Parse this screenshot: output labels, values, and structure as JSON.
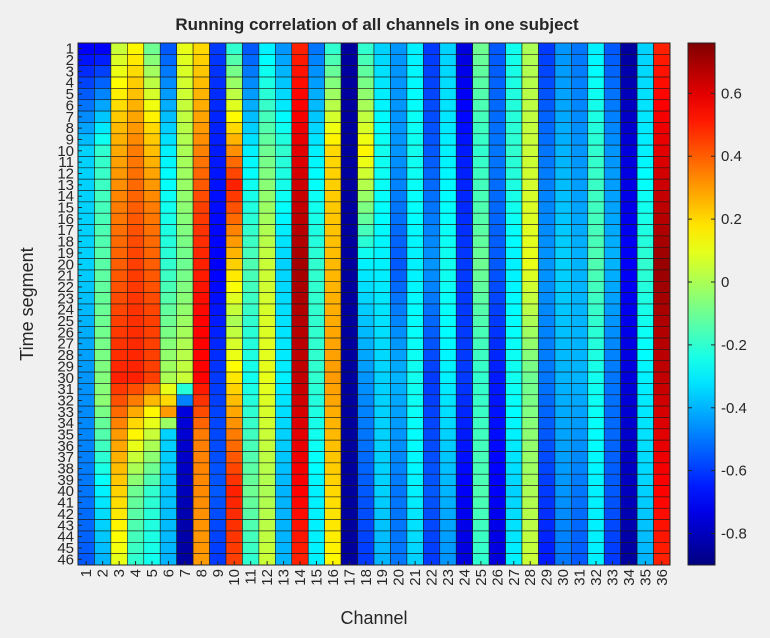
{
  "chart_data": {
    "type": "heatmap",
    "title": "Running correlation of all channels in one subject",
    "xlabel": "Channel",
    "ylabel": "Time segment",
    "x_categories": [
      "1",
      "2",
      "3",
      "4",
      "5",
      "6",
      "7",
      "8",
      "9",
      "10",
      "11",
      "12",
      "13",
      "14",
      "15",
      "16",
      "17",
      "18",
      "19",
      "20",
      "21",
      "22",
      "23",
      "24",
      "25",
      "26",
      "27",
      "28",
      "29",
      "30",
      "31",
      "32",
      "33",
      "34",
      "35",
      "36"
    ],
    "y_categories": [
      "1",
      "2",
      "3",
      "4",
      "5",
      "6",
      "7",
      "8",
      "9",
      "10",
      "11",
      "12",
      "13",
      "14",
      "15",
      "16",
      "17",
      "18",
      "19",
      "20",
      "21",
      "22",
      "23",
      "24",
      "25",
      "26",
      "27",
      "28",
      "29",
      "30",
      "31",
      "32",
      "33",
      "34",
      "35",
      "36",
      "37",
      "38",
      "39",
      "40",
      "41",
      "42",
      "43",
      "44",
      "45",
      "46"
    ],
    "colormap": "jet",
    "clim": [
      -0.9,
      0.76
    ],
    "colorbar": {
      "ticks": [
        -0.8,
        -0.6,
        -0.4,
        -0.2,
        0,
        0.2,
        0.4,
        0.6
      ],
      "tick_labels": [
        "-0.8",
        "-0.6",
        "-0.4",
        "-0.2",
        "0",
        "0.2",
        "0.4",
        "0.6"
      ],
      "placement": "right"
    },
    "column_profiles": [
      {
        "channel": 1,
        "segment_values": [
          [
            1,
            -0.7
          ],
          [
            10,
            -0.35
          ],
          [
            20,
            -0.35
          ],
          [
            30,
            -0.45
          ],
          [
            40,
            -0.5
          ],
          [
            46,
            -0.55
          ]
        ]
      },
      {
        "channel": 2,
        "segment_values": [
          [
            1,
            -0.7
          ],
          [
            10,
            -0.2
          ],
          [
            25,
            -0.1
          ],
          [
            32,
            -0.05
          ],
          [
            40,
            -0.3
          ],
          [
            46,
            -0.4
          ]
        ]
      },
      {
        "channel": 3,
        "segment_values": [
          [
            1,
            0.05
          ],
          [
            8,
            0.25
          ],
          [
            15,
            0.35
          ],
          [
            25,
            0.45
          ],
          [
            30,
            0.5
          ],
          [
            35,
            0.3
          ],
          [
            46,
            0.1
          ]
        ]
      },
      {
        "channel": 4,
        "segment_values": [
          [
            1,
            0.15
          ],
          [
            10,
            0.35
          ],
          [
            20,
            0.45
          ],
          [
            30,
            0.5
          ],
          [
            34,
            0.2
          ],
          [
            40,
            -0.1
          ],
          [
            46,
            -0.2
          ]
        ]
      },
      {
        "channel": 5,
        "segment_values": [
          [
            1,
            -0.1
          ],
          [
            8,
            0.2
          ],
          [
            15,
            0.35
          ],
          [
            25,
            0.45
          ],
          [
            30,
            0.45
          ],
          [
            33,
            0.15
          ],
          [
            40,
            -0.2
          ],
          [
            46,
            -0.25
          ]
        ]
      },
      {
        "channel": 6,
        "segment_values": [
          [
            1,
            -0.55
          ],
          [
            10,
            -0.3
          ],
          [
            20,
            -0.2
          ],
          [
            30,
            0.0
          ],
          [
            33,
            0.3
          ],
          [
            35,
            -0.35
          ],
          [
            46,
            -0.4
          ]
        ]
      },
      {
        "channel": 7,
        "segment_values": [
          [
            1,
            0.1
          ],
          [
            10,
            0.0
          ],
          [
            20,
            -0.1
          ],
          [
            30,
            0.05
          ],
          [
            33,
            -0.75
          ],
          [
            46,
            -0.85
          ]
        ]
      },
      {
        "channel": 8,
        "segment_values": [
          [
            1,
            0.2
          ],
          [
            8,
            0.3
          ],
          [
            15,
            0.45
          ],
          [
            25,
            0.55
          ],
          [
            30,
            0.55
          ],
          [
            35,
            0.35
          ],
          [
            46,
            0.3
          ]
        ]
      },
      {
        "channel": 9,
        "segment_values": [
          [
            1,
            -0.6
          ],
          [
            10,
            -0.65
          ],
          [
            20,
            -0.7
          ],
          [
            30,
            -0.6
          ],
          [
            40,
            -0.55
          ],
          [
            46,
            -0.6
          ]
        ]
      },
      {
        "channel": 10,
        "segment_values": [
          [
            1,
            -0.2
          ],
          [
            8,
            0.2
          ],
          [
            13,
            0.5
          ],
          [
            18,
            0.3
          ],
          [
            25,
            0.0
          ],
          [
            35,
            0.35
          ],
          [
            40,
            0.5
          ],
          [
            46,
            0.45
          ]
        ]
      },
      {
        "channel": 11,
        "segment_values": [
          [
            1,
            -0.55
          ],
          [
            10,
            -0.3
          ],
          [
            20,
            -0.15
          ],
          [
            30,
            -0.25
          ],
          [
            40,
            -0.1
          ],
          [
            46,
            -0.2
          ]
        ]
      },
      {
        "channel": 12,
        "segment_values": [
          [
            1,
            -0.3
          ],
          [
            10,
            -0.1
          ],
          [
            20,
            0.05
          ],
          [
            30,
            0.1
          ],
          [
            40,
            0.0
          ],
          [
            46,
            0.05
          ]
        ]
      },
      {
        "channel": 13,
        "segment_values": [
          [
            1,
            -0.45
          ],
          [
            10,
            -0.2
          ],
          [
            20,
            -0.35
          ],
          [
            30,
            -0.3
          ],
          [
            40,
            -0.4
          ],
          [
            46,
            -0.4
          ]
        ]
      },
      {
        "channel": 14,
        "segment_values": [
          [
            1,
            0.5
          ],
          [
            10,
            0.6
          ],
          [
            20,
            0.7
          ],
          [
            30,
            0.65
          ],
          [
            40,
            0.55
          ],
          [
            46,
            0.5
          ]
        ]
      },
      {
        "channel": 15,
        "segment_values": [
          [
            1,
            -0.5
          ],
          [
            10,
            -0.3
          ],
          [
            20,
            -0.2
          ],
          [
            30,
            -0.2
          ],
          [
            40,
            -0.3
          ],
          [
            46,
            -0.3
          ]
        ]
      },
      {
        "channel": 16,
        "segment_values": [
          [
            1,
            -0.2
          ],
          [
            10,
            0.2
          ],
          [
            20,
            0.25
          ],
          [
            30,
            0.3
          ],
          [
            40,
            0.2
          ],
          [
            46,
            0.15
          ]
        ]
      },
      {
        "channel": 17,
        "segment_values": [
          [
            1,
            -0.85
          ],
          [
            10,
            -0.85
          ],
          [
            20,
            -0.85
          ],
          [
            30,
            -0.85
          ],
          [
            40,
            -0.85
          ],
          [
            46,
            -0.85
          ]
        ]
      },
      {
        "channel": 18,
        "segment_values": [
          [
            1,
            -0.2
          ],
          [
            10,
            0.15
          ],
          [
            20,
            -0.3
          ],
          [
            30,
            -0.45
          ],
          [
            40,
            -0.55
          ],
          [
            46,
            -0.6
          ]
        ]
      },
      {
        "channel": 19,
        "segment_values": [
          [
            1,
            -0.35
          ],
          [
            10,
            -0.25
          ],
          [
            20,
            -0.3
          ],
          [
            30,
            -0.35
          ],
          [
            40,
            -0.35
          ],
          [
            46,
            -0.4
          ]
        ]
      },
      {
        "channel": 20,
        "segment_values": [
          [
            1,
            -0.45
          ],
          [
            10,
            -0.45
          ],
          [
            20,
            -0.55
          ],
          [
            30,
            -0.4
          ],
          [
            40,
            -0.5
          ],
          [
            46,
            -0.5
          ]
        ]
      },
      {
        "channel": 21,
        "segment_values": [
          [
            1,
            -0.3
          ],
          [
            10,
            -0.25
          ],
          [
            20,
            -0.3
          ],
          [
            30,
            -0.25
          ],
          [
            40,
            -0.3
          ],
          [
            46,
            -0.35
          ]
        ]
      },
      {
        "channel": 22,
        "segment_values": [
          [
            1,
            -0.6
          ],
          [
            10,
            -0.55
          ],
          [
            20,
            -0.45
          ],
          [
            30,
            -0.6
          ],
          [
            40,
            -0.55
          ],
          [
            46,
            -0.6
          ]
        ]
      },
      {
        "channel": 23,
        "segment_values": [
          [
            1,
            -0.35
          ],
          [
            10,
            -0.3
          ],
          [
            20,
            -0.25
          ],
          [
            30,
            -0.3
          ],
          [
            40,
            -0.4
          ],
          [
            46,
            -0.45
          ]
        ]
      },
      {
        "channel": 24,
        "segment_values": [
          [
            1,
            -0.75
          ],
          [
            10,
            -0.65
          ],
          [
            20,
            -0.6
          ],
          [
            30,
            -0.6
          ],
          [
            40,
            -0.7
          ],
          [
            46,
            -0.75
          ]
        ]
      },
      {
        "channel": 25,
        "segment_values": [
          [
            1,
            -0.1
          ],
          [
            10,
            -0.2
          ],
          [
            20,
            -0.1
          ],
          [
            30,
            -0.2
          ],
          [
            40,
            -0.15
          ],
          [
            46,
            -0.2
          ]
        ]
      },
      {
        "channel": 26,
        "segment_values": [
          [
            1,
            -0.55
          ],
          [
            10,
            -0.5
          ],
          [
            20,
            -0.55
          ],
          [
            30,
            -0.65
          ],
          [
            40,
            -0.7
          ],
          [
            46,
            -0.75
          ]
        ]
      },
      {
        "channel": 27,
        "segment_values": [
          [
            1,
            -0.25
          ],
          [
            10,
            -0.2
          ],
          [
            20,
            -0.3
          ],
          [
            30,
            -0.25
          ],
          [
            40,
            -0.35
          ],
          [
            46,
            -0.3
          ]
        ]
      },
      {
        "channel": 28,
        "segment_values": [
          [
            1,
            0.0
          ],
          [
            10,
            0.05
          ],
          [
            20,
            0.1
          ],
          [
            30,
            -0.1
          ],
          [
            40,
            0.0
          ],
          [
            46,
            0.05
          ]
        ]
      },
      {
        "channel": 29,
        "segment_values": [
          [
            1,
            -0.6
          ],
          [
            10,
            -0.5
          ],
          [
            20,
            -0.45
          ],
          [
            30,
            -0.5
          ],
          [
            40,
            -0.6
          ],
          [
            46,
            -0.65
          ]
        ]
      },
      {
        "channel": 30,
        "segment_values": [
          [
            1,
            -0.45
          ],
          [
            10,
            -0.4
          ],
          [
            20,
            -0.35
          ],
          [
            30,
            -0.4
          ],
          [
            40,
            -0.45
          ],
          [
            46,
            -0.5
          ]
        ]
      },
      {
        "channel": 31,
        "segment_values": [
          [
            1,
            -0.5
          ],
          [
            10,
            -0.45
          ],
          [
            20,
            -0.4
          ],
          [
            30,
            -0.4
          ],
          [
            40,
            -0.5
          ],
          [
            46,
            -0.55
          ]
        ]
      },
      {
        "channel": 32,
        "segment_values": [
          [
            1,
            -0.3
          ],
          [
            10,
            -0.2
          ],
          [
            20,
            -0.15
          ],
          [
            30,
            -0.25
          ],
          [
            40,
            -0.3
          ],
          [
            46,
            -0.3
          ]
        ]
      },
      {
        "channel": 33,
        "segment_values": [
          [
            1,
            -0.55
          ],
          [
            10,
            -0.45
          ],
          [
            20,
            -0.4
          ],
          [
            30,
            -0.5
          ],
          [
            40,
            -0.55
          ],
          [
            46,
            -0.6
          ]
        ]
      },
      {
        "channel": 34,
        "segment_values": [
          [
            1,
            -0.85
          ],
          [
            10,
            -0.75
          ],
          [
            20,
            -0.7
          ],
          [
            30,
            -0.75
          ],
          [
            40,
            -0.8
          ],
          [
            46,
            -0.85
          ]
        ]
      },
      {
        "channel": 35,
        "segment_values": [
          [
            1,
            -0.35
          ],
          [
            10,
            -0.3
          ],
          [
            20,
            -0.2
          ],
          [
            30,
            -0.3
          ],
          [
            40,
            -0.35
          ],
          [
            46,
            -0.4
          ]
        ]
      },
      {
        "channel": 36,
        "segment_values": [
          [
            1,
            0.5
          ],
          [
            10,
            0.6
          ],
          [
            20,
            0.72
          ],
          [
            30,
            0.65
          ],
          [
            40,
            0.55
          ],
          [
            46,
            0.5
          ]
        ]
      }
    ]
  }
}
